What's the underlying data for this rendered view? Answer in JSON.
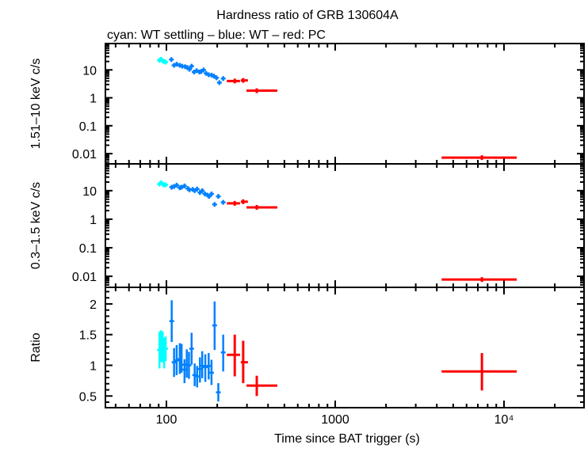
{
  "title": "Hardness ratio of GRB 130604A",
  "subtitle": "cyan: WT settling – blue: WT – red: PC",
  "xlabel": "Time since BAT trigger (s)",
  "colors": {
    "wt_settling": "#00ffff",
    "wt": "#0080ff",
    "pc": "#ff0000",
    "axes": "#000000"
  },
  "chart_data": [
    {
      "type": "scatter",
      "panel": "hard",
      "ylabel": "1.51–10 keV c/s",
      "xscale": "log",
      "yscale": "log",
      "xlim": [
        43.5,
        29800
      ],
      "ylim": [
        0.0043,
        88
      ],
      "xticks": [
        {
          "v": 100,
          "label": "100"
        },
        {
          "v": 1000,
          "label": "1000"
        },
        {
          "v": 10000,
          "label": "10⁴"
        }
      ],
      "yticks": [
        {
          "v": 10,
          "label": "10"
        },
        {
          "v": 1,
          "label": "1"
        },
        {
          "v": 0.1,
          "label": "0.1"
        },
        {
          "v": 0.01,
          "label": "0.01"
        }
      ],
      "columns": [
        "t",
        "t_lo",
        "t_hi",
        "y",
        "y_lo",
        "y_hi"
      ],
      "series": [
        {
          "key": "wt_settling",
          "points": [
            [
              91,
              90,
              92,
              22,
              20,
              24
            ],
            [
              93,
              92,
              94,
              24,
              22,
              26
            ],
            [
              95,
              94,
              96,
              21,
              19,
              23
            ],
            [
              97,
              96,
              98,
              20,
              18,
              22
            ],
            [
              99,
              98,
              100,
              19,
              17,
              21
            ]
          ]
        },
        {
          "key": "wt",
          "points": [
            [
              107,
              105,
              109,
              23.5,
              21.5,
              25.5
            ],
            [
              111,
              109,
              113,
              14.6,
              13.4,
              15.8
            ],
            [
              115,
              113,
              117,
              16,
              14.7,
              17.3
            ],
            [
              120,
              118,
              122,
              14.6,
              13.4,
              15.8
            ],
            [
              124,
              122,
              126,
              13.6,
              12.5,
              14.7
            ],
            [
              129,
              127,
              131,
              13,
              12,
              14
            ],
            [
              133,
              131,
              135,
              12.2,
              11.2,
              13.2
            ],
            [
              137,
              135,
              139,
              10.5,
              9.6,
              11.4
            ],
            [
              141,
              139,
              143,
              13.6,
              12.5,
              14.7
            ],
            [
              146,
              144,
              148,
              8.4,
              7.7,
              9.1
            ],
            [
              151,
              149,
              153,
              9.4,
              8.6,
              10.2
            ],
            [
              157,
              155,
              159,
              8.4,
              7.7,
              9.1
            ],
            [
              161,
              159,
              163,
              8.8,
              8.1,
              9.5
            ],
            [
              166,
              164,
              168,
              10,
              9.2,
              10.8
            ],
            [
              172,
              170,
              174,
              7.5,
              6.9,
              8.1
            ],
            [
              178,
              176,
              180,
              6.7,
              6.1,
              7.3
            ],
            [
              185,
              183,
              187,
              6.5,
              5.9,
              7.1
            ],
            [
              191,
              189,
              193,
              6.0,
              5.5,
              6.5
            ],
            [
              198,
              196,
              200,
              5.2,
              4.7,
              5.7
            ],
            [
              206,
              203,
              209,
              3.5,
              3.1,
              3.9
            ],
            [
              217,
              214,
              220,
              4.9,
              4.4,
              5.4
            ]
          ]
        },
        {
          "key": "pc",
          "points": [
            [
              254,
              228,
              273,
              4.0,
              3.4,
              4.7
            ],
            [
              285,
              279,
              304,
              4.2,
              3.6,
              4.9
            ],
            [
              343,
              298,
              454,
              1.8,
              1.6,
              2.05
            ],
            [
              7400,
              4270,
              11900,
              0.0072,
              0.0064,
              0.0082
            ]
          ]
        }
      ]
    },
    {
      "type": "scatter",
      "panel": "soft",
      "ylabel": "0.3–1.5 keV c/s",
      "xscale": "log",
      "yscale": "log",
      "xlim": [
        43.5,
        29800
      ],
      "ylim": [
        0.0041,
        87
      ],
      "xticks": [
        {
          "v": 100,
          "label": "100"
        },
        {
          "v": 1000,
          "label": "1000"
        },
        {
          "v": 10000,
          "label": "10⁴"
        }
      ],
      "yticks": [
        {
          "v": 10,
          "label": "10"
        },
        {
          "v": 1,
          "label": "1"
        },
        {
          "v": 0.1,
          "label": "0.1"
        },
        {
          "v": 0.01,
          "label": "0.01"
        }
      ],
      "columns": [
        "t",
        "t_lo",
        "t_hi",
        "y",
        "y_lo",
        "y_hi"
      ],
      "series": [
        {
          "key": "wt_settling",
          "points": [
            [
              91,
              90,
              92,
              17,
              15.5,
              18.5
            ],
            [
              93,
              92,
              94,
              19,
              17.5,
              20.5
            ],
            [
              95,
              94,
              96,
              17,
              15.5,
              18.5
            ],
            [
              97,
              96,
              98,
              16,
              14.7,
              17.3
            ],
            [
              99,
              98,
              100,
              16,
              14.7,
              17.3
            ]
          ]
        },
        {
          "key": "wt",
          "points": [
            [
              107.5,
              105,
              110,
              13.2,
              12.2,
              14.2
            ],
            [
              111,
              109,
              113,
              14,
              12.9,
              15.1
            ],
            [
              115,
              113,
              117,
              15.6,
              14.4,
              16.8
            ],
            [
              120,
              118,
              122,
              12.7,
              11.7,
              13.7
            ],
            [
              123,
              121,
              125,
              13.2,
              12.2,
              14.2
            ],
            [
              128,
              126,
              130,
              14.7,
              13.6,
              15.8
            ],
            [
              134,
              132,
              136,
              11.9,
              11,
              12.8
            ],
            [
              137,
              135,
              139,
              10.7,
              9.9,
              11.5
            ],
            [
              143,
              141,
              145,
              11.1,
              10.2,
              12
            ],
            [
              147,
              145,
              149,
              10,
              9.2,
              10.8
            ],
            [
              152,
              150,
              154,
              11.4,
              10.5,
              12.3
            ],
            [
              158,
              156,
              160,
              8.6,
              7.9,
              9.3
            ],
            [
              163,
              161,
              165,
              10,
              9.2,
              10.8
            ],
            [
              169,
              167,
              171,
              7.7,
              7.1,
              8.3
            ],
            [
              175,
              173,
              177,
              7.0,
              6.4,
              7.6
            ],
            [
              179,
              177,
              181,
              6.3,
              5.8,
              6.8
            ],
            [
              185,
              183,
              187,
              7.7,
              7.1,
              8.3
            ],
            [
              193,
              190,
              196,
              3.3,
              2.9,
              3.7
            ],
            [
              203,
              200,
              206,
              6.3,
              5.6,
              7.0
            ],
            [
              217,
              214,
              220,
              3.9,
              3.4,
              4.4
            ]
          ]
        },
        {
          "key": "pc",
          "points": [
            [
              254,
              228,
              273,
              3.6,
              3.1,
              4.2
            ],
            [
              285,
              279,
              304,
              4.1,
              3.5,
              4.8
            ],
            [
              343,
              298,
              454,
              2.6,
              2.4,
              2.8
            ],
            [
              7400,
              4270,
              11900,
              0.0077,
              0.0069,
              0.0087
            ]
          ]
        }
      ]
    },
    {
      "type": "scatter",
      "panel": "ratio",
      "ylabel": "Ratio",
      "xscale": "log",
      "yscale": "linear",
      "xlim": [
        43.5,
        29800
      ],
      "ylim": [
        0.31,
        2.27
      ],
      "xticks": [
        {
          "v": 100,
          "label": "100"
        },
        {
          "v": 1000,
          "label": "1000"
        },
        {
          "v": 10000,
          "label": "10⁴"
        }
      ],
      "yticks": [
        {
          "v": 2,
          "label": "2"
        },
        {
          "v": 1.5,
          "label": "1.5"
        },
        {
          "v": 1,
          "label": "1"
        },
        {
          "v": 0.5,
          "label": "0.5"
        }
      ],
      "columns": [
        "t",
        "t_lo",
        "t_hi",
        "y",
        "y_lo",
        "y_hi"
      ],
      "series": [
        {
          "key": "wt_settling",
          "points": [
            [
              91,
              90,
              92,
              1.25,
              0.95,
              1.55
            ],
            [
              93,
              92,
              94,
              1.35,
              1.05,
              1.57
            ],
            [
              95,
              94,
              96,
              1.3,
              1.05,
              1.55
            ],
            [
              97,
              96,
              98,
              1.2,
              0.95,
              1.45
            ],
            [
              99,
              98,
              100,
              1.27,
              1.07,
              1.47
            ]
          ]
        },
        {
          "key": "wt",
          "points": [
            [
              107.5,
              106,
              109,
              1.72,
              1.38,
              2.06
            ],
            [
              111,
              110,
              112,
              1.05,
              0.81,
              1.28
            ],
            [
              115,
              114,
              116,
              1.08,
              0.84,
              1.33
            ],
            [
              120,
              119,
              121,
              1.1,
              0.86,
              1.36
            ],
            [
              123,
              122,
              124,
              1.01,
              0.88,
              1.35
            ],
            [
              128,
              127,
              129,
              0.93,
              0.71,
              1.1
            ],
            [
              132,
              131,
              133,
              1.01,
              0.8,
              1.26
            ],
            [
              136,
              135,
              137,
              1.0,
              0.78,
              1.22
            ],
            [
              141,
              138,
              144,
              1.27,
              1.01,
              1.53
            ],
            [
              147,
              146,
              148,
              0.84,
              0.66,
              1.03
            ],
            [
              152,
              151,
              153,
              0.82,
              0.64,
              0.99
            ],
            [
              158,
              157,
              159,
              0.94,
              0.72,
              1.13
            ],
            [
              163,
              160,
              166,
              0.99,
              0.79,
              1.23
            ],
            [
              170,
              169,
              171,
              0.97,
              0.73,
              1.18
            ],
            [
              178,
              177,
              179,
              0.99,
              0.77,
              1.2
            ],
            [
              185,
              182,
              188,
              0.88,
              0.68,
              1.09
            ],
            [
              193,
              190,
              196,
              1.65,
              1.25,
              2.04
            ],
            [
              203,
              200,
              206,
              0.56,
              0.41,
              0.71
            ],
            [
              217,
              214,
              220,
              1.21,
              0.9,
              1.5
            ]
          ]
        },
        {
          "key": "pc",
          "points": [
            [
              254,
              228,
              273,
              1.17,
              0.82,
              1.5
            ],
            [
              285,
              279,
              304,
              1.05,
              0.71,
              1.4
            ],
            [
              343,
              298,
              454,
              0.67,
              0.5,
              0.83
            ],
            [
              7400,
              4270,
              11900,
              0.9,
              0.59,
              1.2
            ]
          ]
        }
      ]
    }
  ]
}
